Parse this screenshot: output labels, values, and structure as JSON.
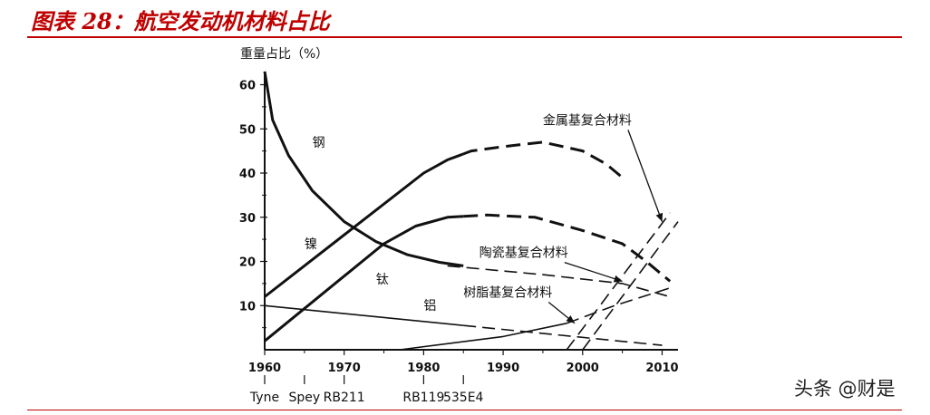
{
  "figure_title": "图表 28：航空发动机材料占比",
  "watermark": "头条 @财是",
  "chart_data": {
    "type": "line",
    "title": "",
    "ylabel": "重量占比（%）",
    "xlabel": "",
    "xlim": [
      1960,
      2012
    ],
    "ylim": [
      0,
      63
    ],
    "x_ticks": [
      1960,
      1970,
      1980,
      1990,
      2000,
      2010
    ],
    "y_ticks": [
      10,
      20,
      30,
      40,
      50,
      60
    ],
    "engines": [
      {
        "label": "Tyne",
        "year": 1960
      },
      {
        "label": "Spey",
        "year": 1965
      },
      {
        "label": "RB211",
        "year": 1970
      },
      {
        "label": "RB119",
        "year": 1980
      },
      {
        "label": "535E4",
        "year": 1985
      }
    ],
    "series": [
      {
        "name": "钢",
        "points": [
          [
            1960,
            63
          ],
          [
            1961,
            52
          ],
          [
            1963,
            44
          ],
          [
            1966,
            36
          ],
          [
            1970,
            29
          ],
          [
            1974,
            24.5
          ],
          [
            1978,
            21.5
          ],
          [
            1982,
            19.8
          ],
          [
            1985,
            19
          ]
        ],
        "dashed": []
      },
      {
        "name": "镍",
        "points": [
          [
            1960,
            12
          ],
          [
            1980,
            40
          ],
          [
            1983,
            43
          ],
          [
            1986,
            45
          ],
          [
            1990,
            46
          ],
          [
            1995,
            47
          ],
          [
            2000,
            45
          ],
          [
            2003,
            42
          ],
          [
            2007,
            36
          ],
          [
            2011,
            20
          ]
        ],
        "dashed": [
          [
            1985,
            2005
          ]
        ]
      },
      {
        "name": "钛",
        "points": [
          [
            1960,
            2
          ],
          [
            1975,
            24
          ],
          [
            1979,
            28
          ],
          [
            1983,
            30
          ],
          [
            1988,
            30.5
          ],
          [
            1994,
            30
          ],
          [
            2000,
            27
          ],
          [
            2005,
            24
          ],
          [
            2008,
            20
          ],
          [
            2011,
            15.5
          ]
        ],
        "dashed": [
          [
            1985,
            2011
          ]
        ]
      },
      {
        "name": "铝",
        "points": [
          [
            1960,
            10
          ],
          [
            2010,
            1
          ]
        ],
        "dashed": [
          [
            1985,
            2010
          ]
        ]
      },
      {
        "name": "陶瓷基复合材料",
        "points": [
          [
            1983,
            19
          ],
          [
            1995,
            17
          ],
          [
            2005,
            15
          ],
          [
            2011,
            12
          ]
        ],
        "dashed": [
          [
            1983,
            2011
          ]
        ]
      },
      {
        "name": "树脂基复合材料",
        "points": [
          [
            1977,
            0
          ],
          [
            1990,
            3
          ],
          [
            1998,
            6
          ],
          [
            2004,
            10
          ],
          [
            2011,
            14
          ]
        ],
        "dashed": [
          [
            1998,
            2011
          ]
        ]
      },
      {
        "name": "金属基复合材料",
        "points": [
          [
            1998,
            0
          ],
          [
            2011,
            31
          ]
        ],
        "dashed": [
          [
            1998,
            2011
          ]
        ]
      },
      {
        "name": "",
        "points": [
          [
            2000,
            0
          ],
          [
            2012,
            29
          ]
        ],
        "dashed": [
          [
            2000,
            2012
          ]
        ]
      }
    ],
    "annotations": [
      {
        "text": "钢",
        "x": 1966,
        "y": 46
      },
      {
        "text": "镍",
        "x": 1965,
        "y": 23
      },
      {
        "text": "钛",
        "x": 1974,
        "y": 15
      },
      {
        "text": "铝",
        "x": 1980,
        "y": 9
      },
      {
        "text": "金属基复合材料",
        "x": 1995,
        "y": 51,
        "arrow_to": [
          2010,
          29
        ]
      },
      {
        "text": "陶瓷基复合材料",
        "x": 1987,
        "y": 21,
        "arrow_to": [
          2005,
          15.5
        ]
      },
      {
        "text": "树脂基复合材料",
        "x": 1985,
        "y": 12,
        "arrow_to": [
          1999,
          6
        ]
      }
    ],
    "grid": false,
    "legend": "none"
  }
}
